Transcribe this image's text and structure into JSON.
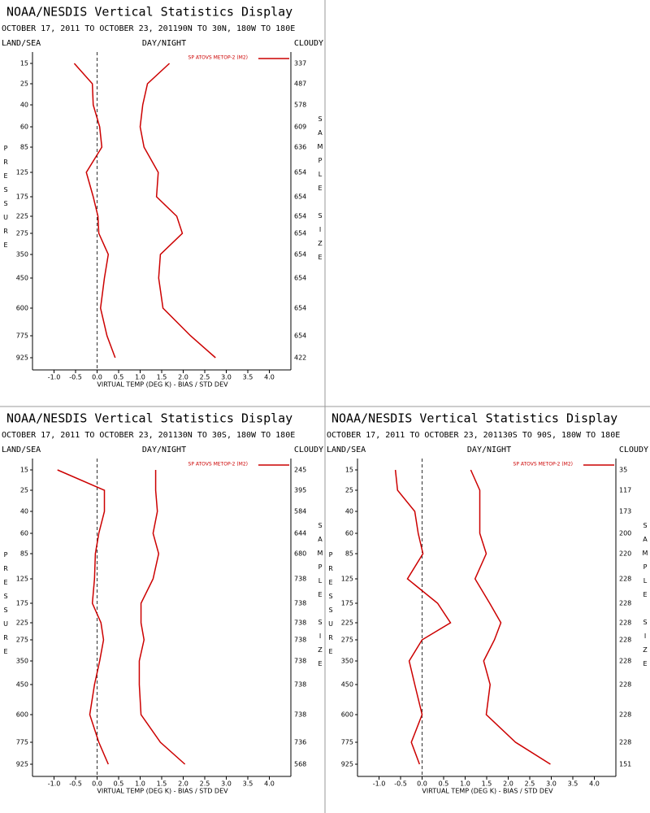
{
  "chart_data": [
    {
      "type": "line",
      "title": "NOAA/NESDIS Vertical Statistics Display",
      "subtitle": "OCTOBER 17, 2011 TO OCTOBER 23, 201190N TO 30N, 180W TO 180E",
      "land_sea": "LAND/SEA",
      "day_night": "DAY/NIGHT",
      "cloudy": "CLOUDY",
      "ylabel": "PRESSURE",
      "y2label": "SAMPLE SIZE",
      "xlabel": "VIRTUAL TEMP (DEG K) - BIAS / STD DEV",
      "categories": [
        15,
        25,
        40,
        60,
        85,
        125,
        175,
        225,
        275,
        350,
        450,
        600,
        775,
        925
      ],
      "sample_sizes": [
        337,
        487,
        578,
        609,
        636,
        654,
        654,
        654,
        654,
        654,
        654,
        654,
        654,
        422
      ],
      "series": [
        {
          "name": "SP ATOVS METOP-2 (M2)",
          "color": "#cc0000",
          "values": [
            -0.53,
            -0.11,
            -0.09,
            0.06,
            0.11,
            -0.25,
            -0.09,
            0.02,
            0.04,
            0.26,
            0.17,
            0.08,
            0.23,
            0.42
          ]
        },
        {
          "color": "#cc0000",
          "values": [
            1.68,
            1.17,
            1.06,
            1.0,
            1.09,
            1.42,
            1.38,
            1.85,
            1.98,
            1.47,
            1.43,
            1.53,
            2.17,
            2.75
          ]
        }
      ],
      "xlim": [
        -1.5,
        4.5
      ],
      "xticks": [
        {
          "value": -1,
          "label": "-1.0"
        },
        -0.5,
        {
          "value": 0,
          "label": "0.0"
        },
        0.5,
        {
          "value": 1,
          "label": "1.0"
        },
        1.5,
        {
          "value": 2,
          "label": "2.0"
        },
        2.5,
        {
          "value": 3,
          "label": "3.0"
        },
        3.5,
        {
          "value": 4,
          "label": "4.0"
        }
      ]
    },
    {
      "type": "line",
      "title": "NOAA/NESDIS Vertical Statistics Display",
      "subtitle": "OCTOBER 17, 2011 TO OCTOBER 23, 201130N TO 30S, 180W TO 180E",
      "land_sea": "LAND/SEA",
      "day_night": "DAY/NIGHT",
      "cloudy": "CLOUDY",
      "ylabel": "PRESSURE",
      "y2label": "SAMPLE SIZE",
      "xlabel": "VIRTUAL TEMP (DEG K) - BIAS / STD DEV",
      "categories": [
        15,
        25,
        40,
        60,
        85,
        125,
        175,
        225,
        275,
        350,
        450,
        600,
        775,
        925
      ],
      "sample_sizes": [
        245,
        395,
        584,
        644,
        680,
        738,
        738,
        738,
        738,
        738,
        738,
        738,
        736,
        568
      ],
      "series": [
        {
          "name": "SP ATOVS METOP-2 (M2)",
          "color": "#cc0000",
          "values": [
            -0.92,
            0.17,
            0.17,
            0.04,
            -0.04,
            -0.06,
            -0.11,
            0.09,
            0.15,
            0.06,
            -0.06,
            -0.17,
            0.04,
            0.26
          ]
        },
        {
          "color": "#cc0000",
          "values": [
            1.36,
            1.36,
            1.4,
            1.3,
            1.43,
            1.3,
            1.02,
            1.02,
            1.09,
            0.98,
            0.98,
            1.02,
            1.47,
            2.04
          ]
        }
      ],
      "xlim": [
        -1.5,
        4.5
      ],
      "xticks": [
        {
          "value": -1,
          "label": "-1.0"
        },
        -0.5,
        {
          "value": 0,
          "label": "0.0"
        },
        0.5,
        {
          "value": 1,
          "label": "1.0"
        },
        1.5,
        {
          "value": 2,
          "label": "2.0"
        },
        2.5,
        {
          "value": 3,
          "label": "3.0"
        },
        3.5,
        {
          "value": 4,
          "label": "4.0"
        }
      ]
    },
    {
      "type": "line",
      "title": "NOAA/NESDIS Vertical Statistics Display",
      "subtitle": "OCTOBER 17, 2011 TO OCTOBER 23, 201130S TO 90S, 180W TO 180E",
      "land_sea": "LAND/SEA",
      "day_night": "DAY/NIGHT",
      "cloudy": "CLOUDY",
      "ylabel": "PRESSURE",
      "y2label": "SAMPLE SIZE",
      "xlabel": "VIRTUAL TEMP (DEG K) - BIAS / STD DEV",
      "categories": [
        15,
        25,
        40,
        60,
        85,
        125,
        175,
        225,
        275,
        350,
        450,
        600,
        775,
        925
      ],
      "sample_sizes": [
        35,
        117,
        173,
        200,
        220,
        228,
        228,
        228,
        228,
        228,
        228,
        228,
        228,
        151
      ],
      "series": [
        {
          "name": "SP ATOVS METOP-2 (M2)",
          "color": "#cc0000",
          "values": [
            -0.62,
            -0.57,
            -0.17,
            -0.09,
            0.02,
            -0.34,
            0.36,
            0.66,
            0.0,
            -0.3,
            -0.17,
            0.0,
            -0.25,
            -0.06
          ]
        },
        {
          "color": "#cc0000",
          "values": [
            1.13,
            1.34,
            1.34,
            1.34,
            1.49,
            1.23,
            1.57,
            1.83,
            1.68,
            1.43,
            1.58,
            1.49,
            2.17,
            2.98
          ]
        }
      ],
      "xlim": [
        -1.5,
        4.5
      ],
      "xticks": [
        {
          "value": -1,
          "label": "-1.0"
        },
        -0.5,
        {
          "value": 0,
          "label": "0.0"
        },
        0.5,
        {
          "value": 1,
          "label": "1.0"
        },
        1.5,
        {
          "value": 2,
          "label": "2.0"
        },
        2.5,
        {
          "value": 3,
          "label": "3.0"
        },
        3.5,
        {
          "value": 4,
          "label": "4.0"
        }
      ]
    }
  ]
}
